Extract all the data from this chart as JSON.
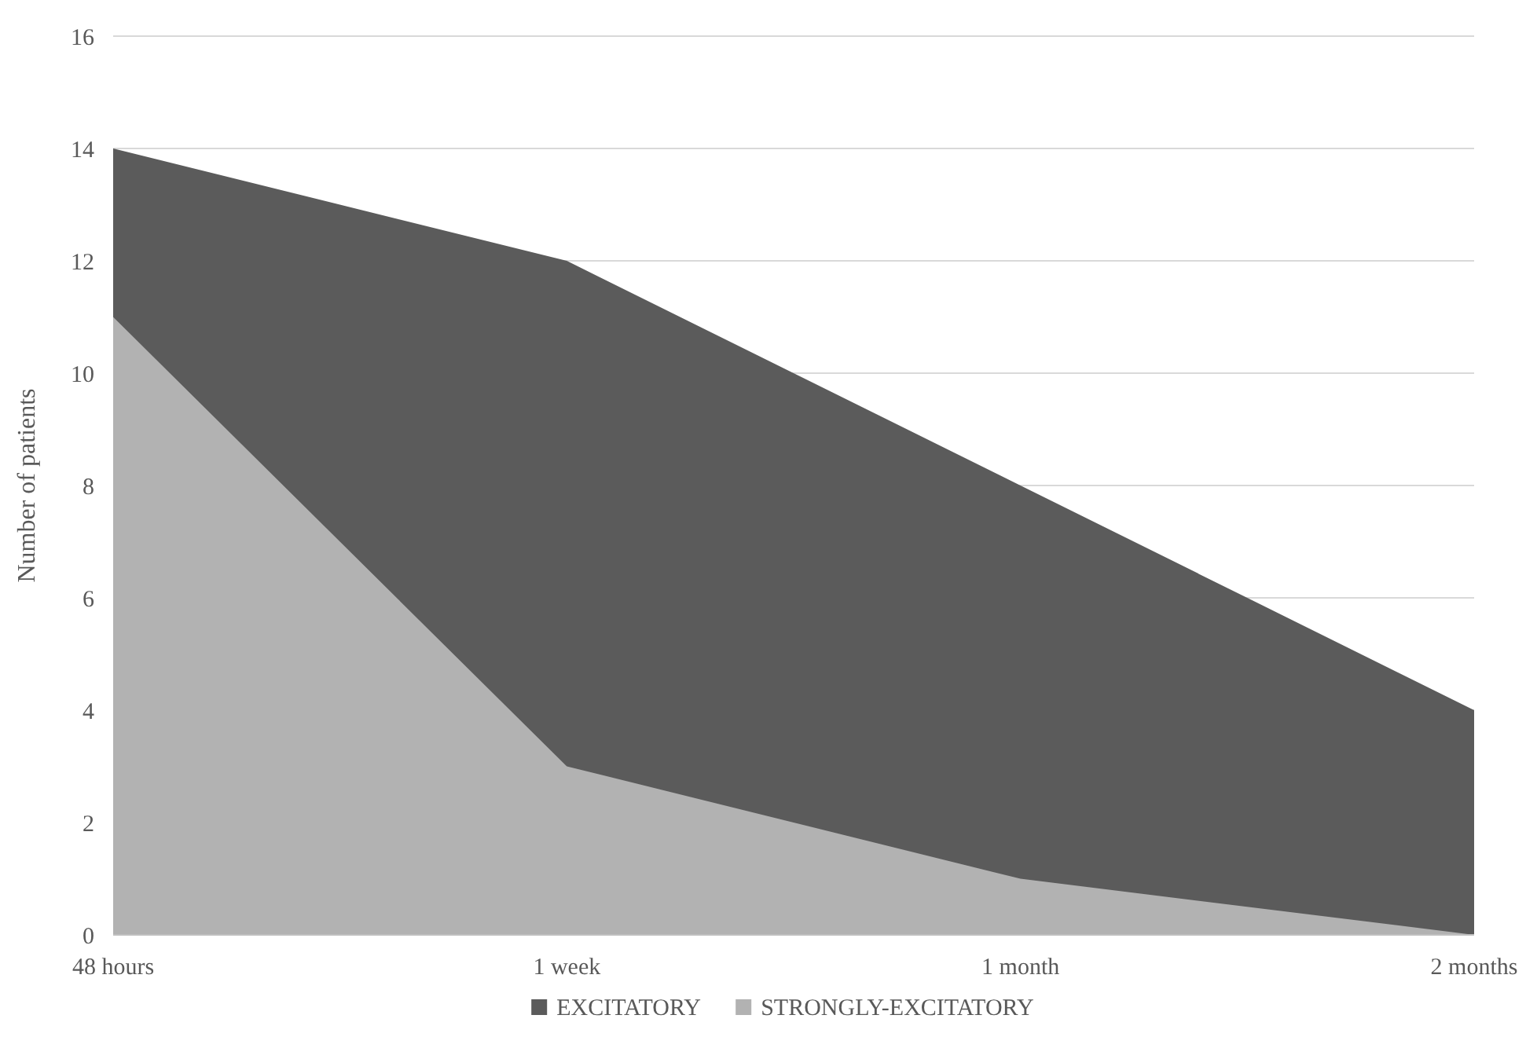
{
  "chart_data": {
    "type": "area",
    "ylabel": "Number of patients",
    "categories": [
      "48 hours",
      "1 week",
      "1 month",
      "2 months"
    ],
    "series": [
      {
        "name": "EXCITATORY",
        "color": "#5b5b5b",
        "values": [
          14,
          12,
          8,
          4
        ]
      },
      {
        "name": "STRONGLY-EXCITATORY",
        "color": "#b2b2b2",
        "values": [
          11,
          3,
          1,
          0
        ]
      }
    ],
    "ylim": [
      0,
      16
    ],
    "yticks": [
      0,
      2,
      4,
      6,
      8,
      10,
      12,
      14,
      16
    ],
    "grid": "y",
    "legend": "bottom"
  }
}
